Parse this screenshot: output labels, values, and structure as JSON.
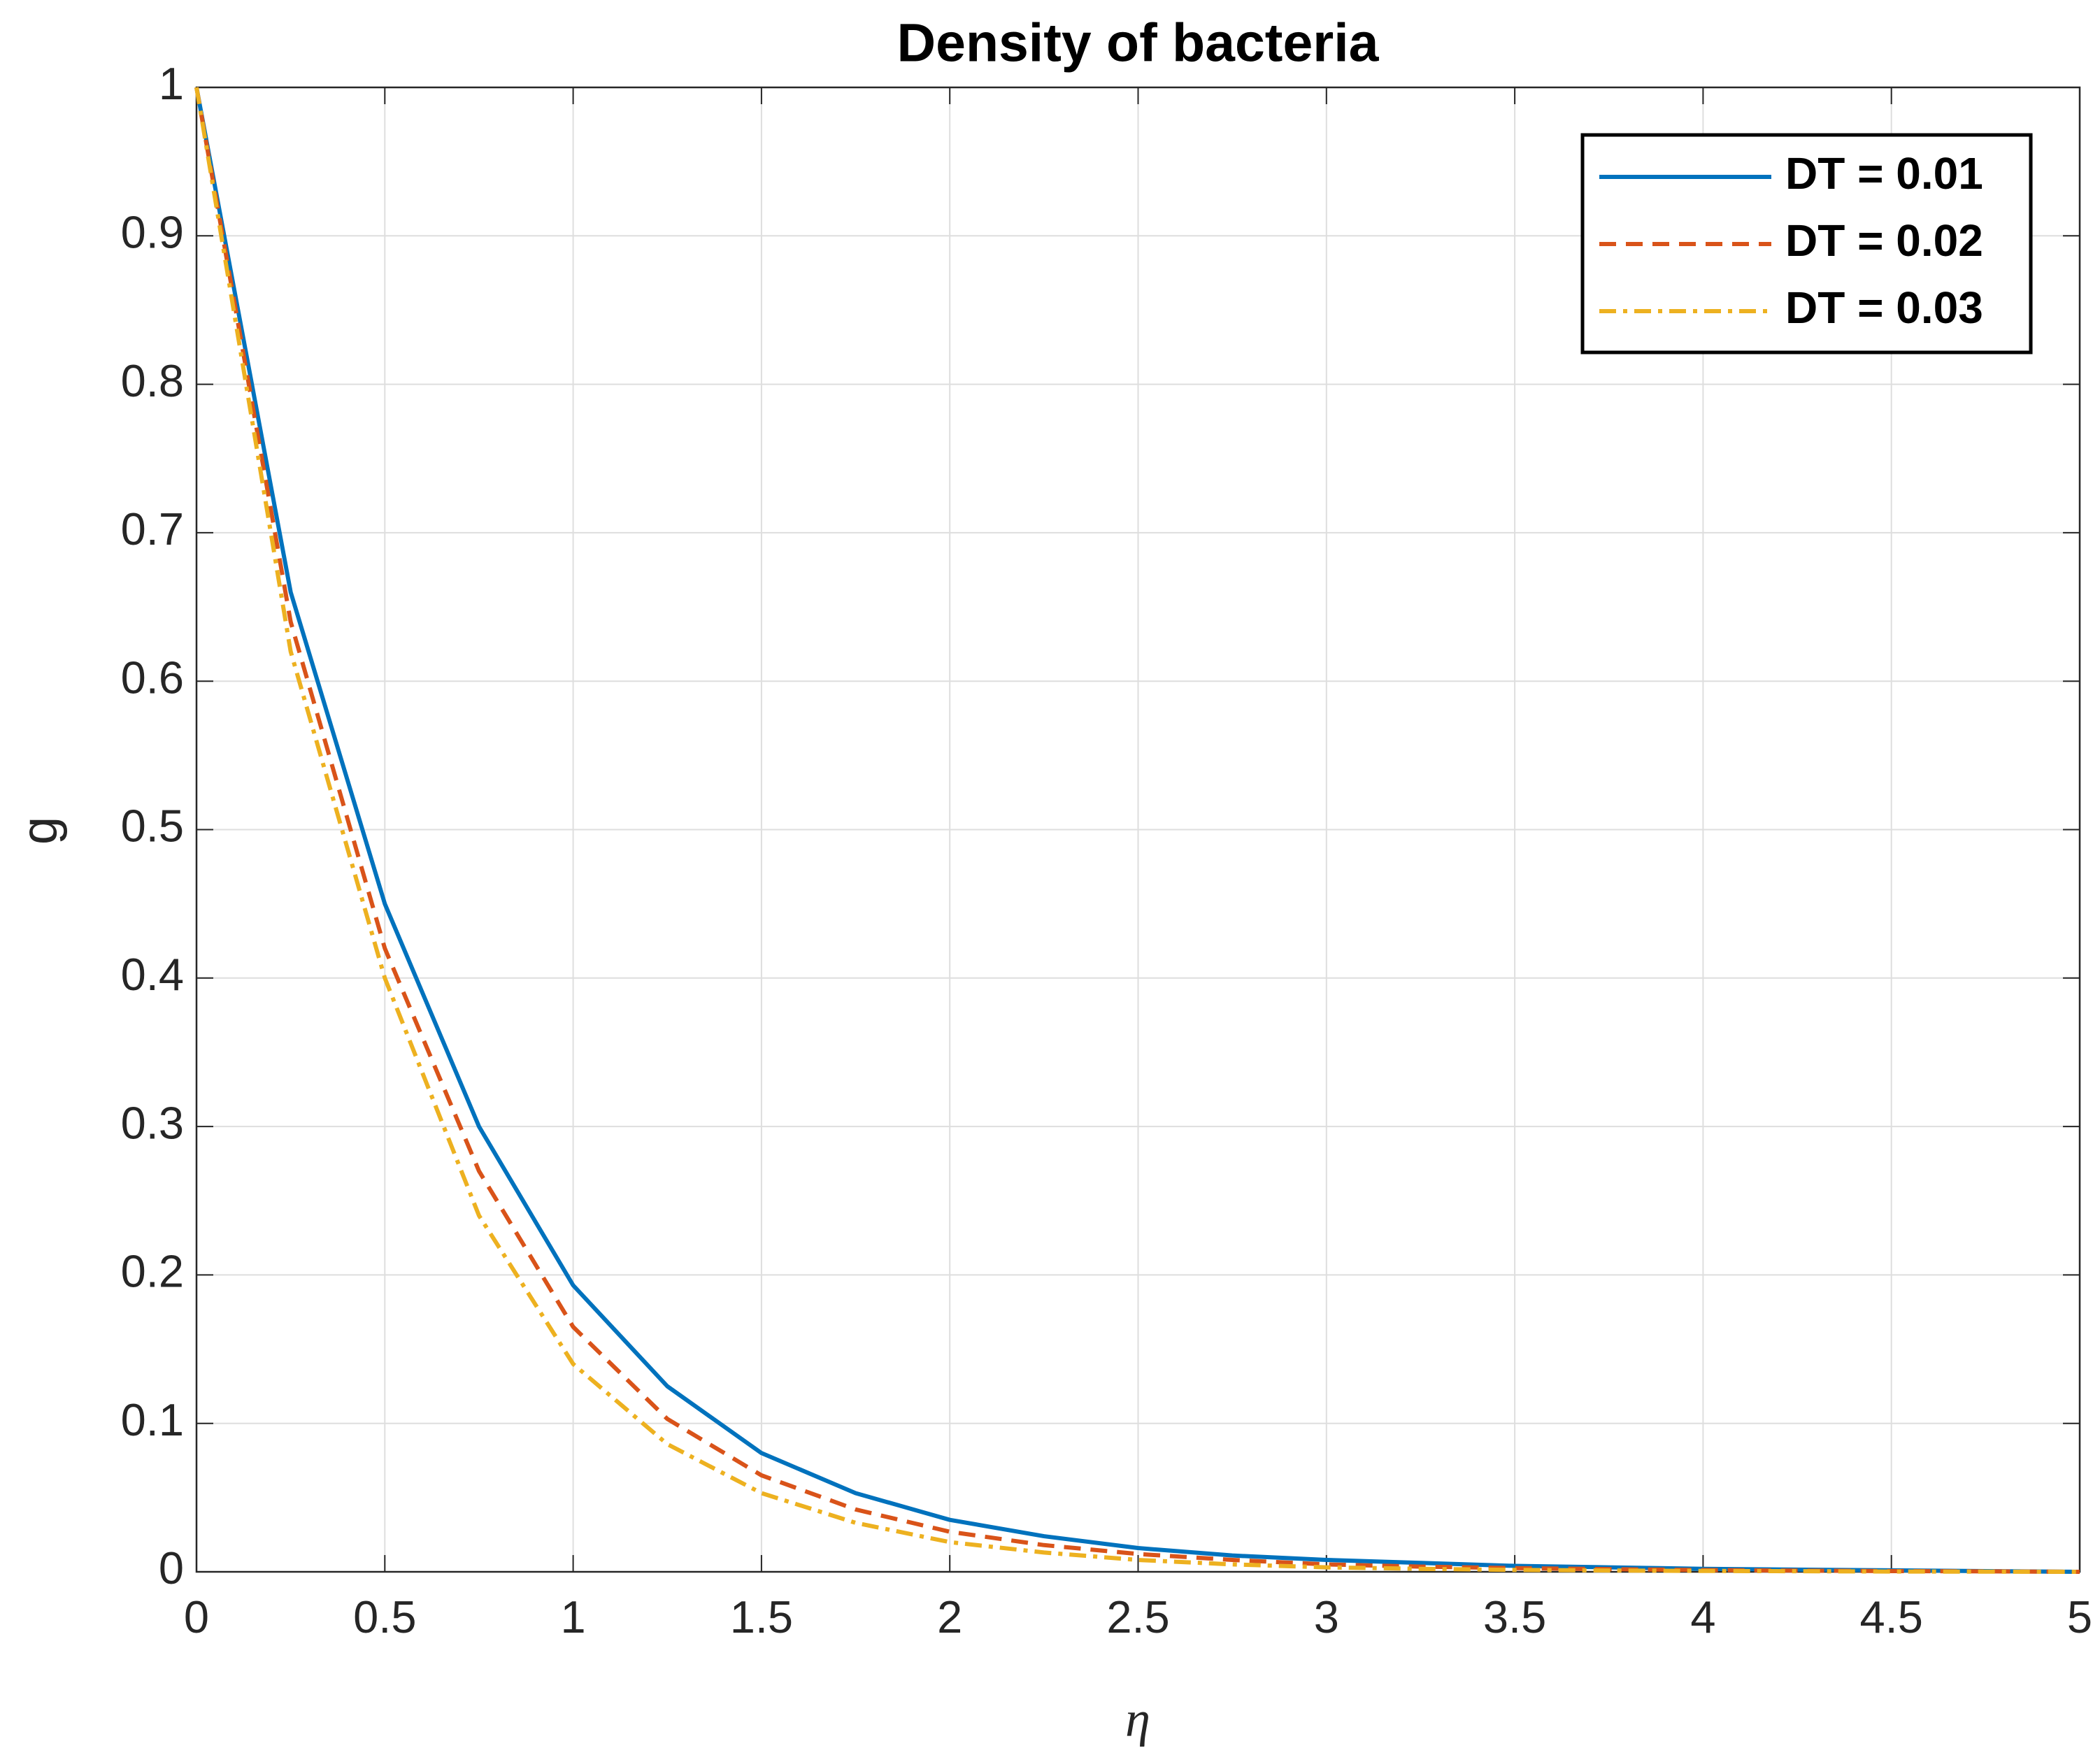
{
  "chart_data": {
    "type": "line",
    "title": "Density of bacteria",
    "xlabel": "η",
    "ylabel": "g",
    "x": [
      0,
      0.25,
      0.5,
      0.75,
      1,
      1.25,
      1.5,
      1.75,
      2,
      2.25,
      2.5,
      2.75,
      3,
      3.25,
      3.5,
      3.75,
      4,
      4.25,
      4.5,
      4.75,
      5
    ],
    "series": [
      {
        "name": "DT = 0.01",
        "color": "#0072bd",
        "dash": "solid",
        "values": [
          1,
          0.66,
          0.45,
          0.3,
          0.193,
          0.125,
          0.08,
          0.053,
          0.035,
          0.024,
          0.016,
          0.011,
          0.008,
          0.006,
          0.004,
          0.003,
          0.002,
          0.0015,
          0.001,
          0.0005,
          0
        ]
      },
      {
        "name": "DT = 0.02",
        "color": "#d95319",
        "dash": "dashed",
        "values": [
          1,
          0.64,
          0.42,
          0.27,
          0.165,
          0.103,
          0.065,
          0.042,
          0.027,
          0.018,
          0.012,
          0.008,
          0.005,
          0.0035,
          0.0025,
          0.0018,
          0.0012,
          0.0008,
          0.0005,
          0.0003,
          0
        ]
      },
      {
        "name": "DT = 0.03",
        "color": "#edb120",
        "dash": "dashdot",
        "values": [
          1,
          0.62,
          0.4,
          0.24,
          0.14,
          0.086,
          0.053,
          0.033,
          0.02,
          0.013,
          0.008,
          0.005,
          0.003,
          0.002,
          0.0013,
          0.0009,
          0.0006,
          0.0004,
          0.0002,
          0.0001,
          0
        ]
      }
    ],
    "xlim": [
      0,
      5
    ],
    "xticks": [
      0,
      0.5,
      1,
      1.5,
      2,
      2.5,
      3,
      3.5,
      4,
      4.5,
      5
    ],
    "ylim": [
      0,
      1
    ],
    "yticks": [
      0,
      0.1,
      0.2,
      0.3,
      0.4,
      0.5,
      0.6,
      0.7,
      0.8,
      0.9,
      1
    ],
    "grid": true,
    "legend": "top-right"
  }
}
